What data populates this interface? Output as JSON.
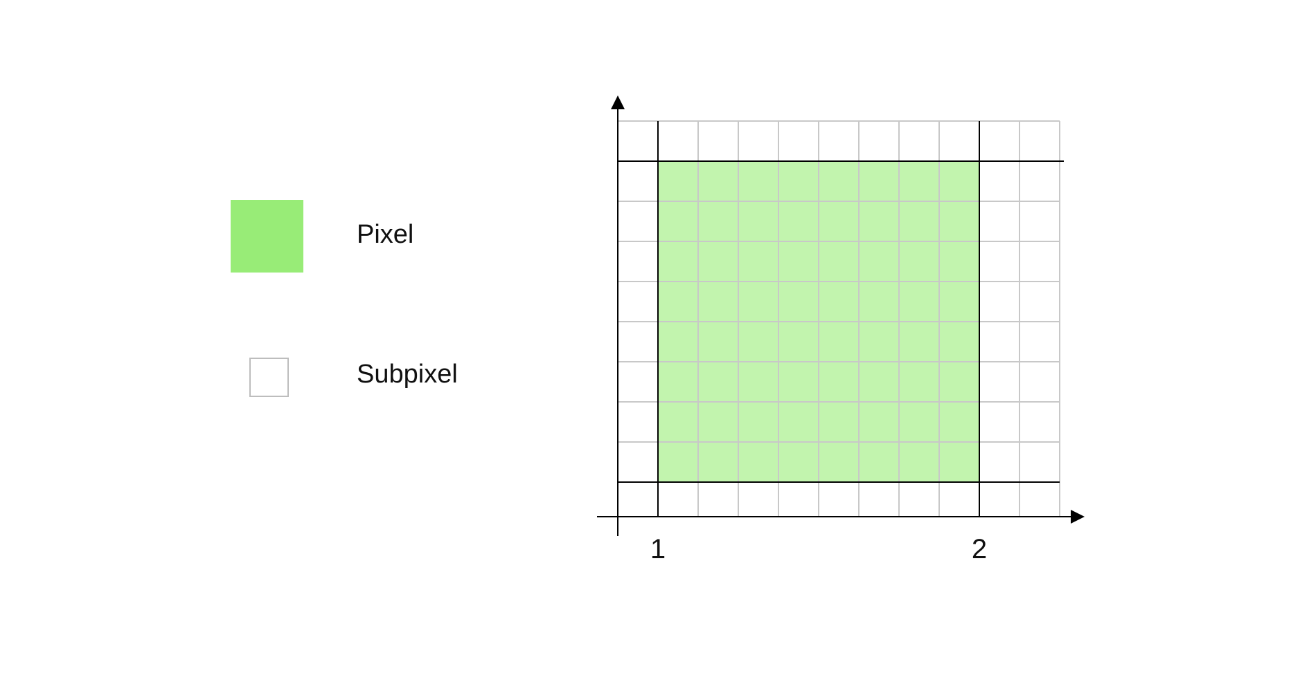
{
  "legend": {
    "pixel_label": "Pixel",
    "subpixel_label": "Subpixel",
    "pixel_color": "#98ec77",
    "subpixel_border_color": "#bdbdbd"
  },
  "diagram": {
    "x_tick_labels": [
      "1",
      "2"
    ],
    "subpixels_per_pixel": 8,
    "grid_line_color": "#c8c8c8",
    "pixel_boundary_color": "#000000",
    "pixel_fill_color": "#c2f4ae",
    "axis_color": "#000000"
  }
}
